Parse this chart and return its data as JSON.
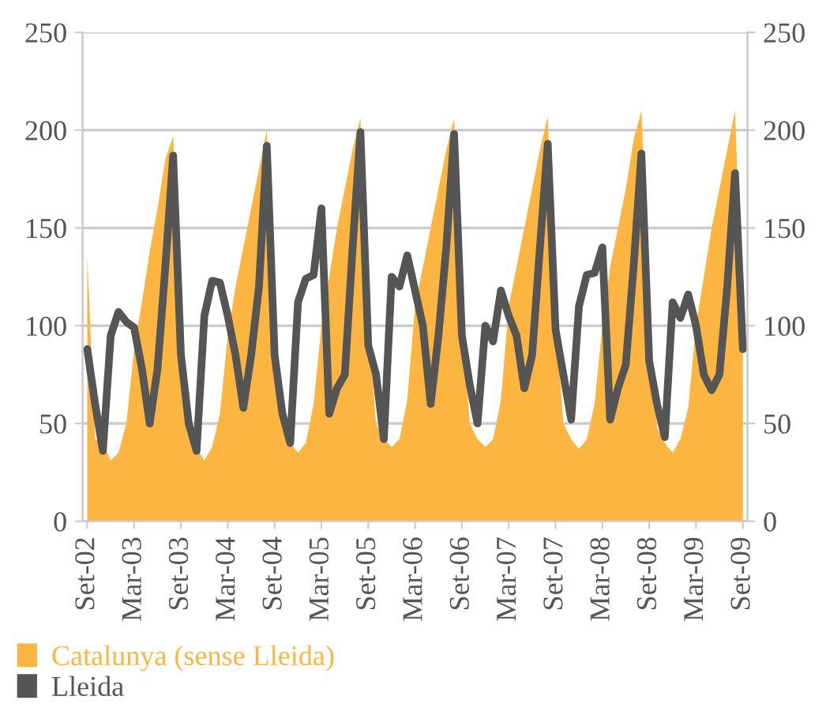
{
  "chart_data": {
    "type": "area",
    "categories": [
      "Set-02",
      null,
      null,
      null,
      null,
      null,
      "Mar-03",
      null,
      null,
      null,
      null,
      null,
      "Set-03",
      null,
      null,
      null,
      null,
      null,
      "Mar-04",
      null,
      null,
      null,
      null,
      null,
      "Set-04",
      null,
      null,
      null,
      null,
      null,
      "Mar-05",
      null,
      null,
      null,
      null,
      null,
      "Set-05",
      null,
      null,
      null,
      null,
      null,
      "Mar-06",
      null,
      null,
      null,
      null,
      null,
      "Set-06",
      null,
      null,
      null,
      null,
      null,
      "Mar-07",
      null,
      null,
      null,
      null,
      null,
      "Set-07",
      null,
      null,
      null,
      null,
      null,
      "Mar-08",
      null,
      null,
      null,
      null,
      null,
      "Set-08",
      null,
      null,
      null,
      null,
      null,
      "Mar-09",
      null,
      null,
      null,
      null,
      null,
      "Set-09"
    ],
    "series": [
      {
        "name": "Catalunya (sense Lleida)",
        "color": "#fbb540",
        "values": [
          136,
          42,
          40,
          31,
          35,
          50,
          88,
          112,
          138,
          160,
          185,
          197,
          100,
          45,
          38,
          31,
          38,
          55,
          95,
          120,
          140,
          160,
          180,
          200,
          105,
          48,
          40,
          35,
          40,
          60,
          100,
          125,
          150,
          170,
          190,
          206,
          105,
          50,
          42,
          38,
          42,
          62,
          110,
          130,
          150,
          170,
          190,
          206,
          105,
          50,
          42,
          38,
          42,
          62,
          110,
          130,
          150,
          170,
          190,
          207,
          105,
          50,
          42,
          37,
          42,
          60,
          100,
          130,
          150,
          170,
          195,
          210,
          105,
          48,
          40,
          35,
          42,
          58,
          100,
          125,
          150,
          170,
          190,
          210,
          100
        ]
      },
      {
        "name": "Lleida",
        "type": "line",
        "color": "#555555",
        "values": [
          88,
          60,
          36,
          95,
          107,
          102,
          99,
          78,
          50,
          78,
          130,
          187,
          85,
          50,
          36,
          105,
          123,
          122,
          105,
          85,
          58,
          85,
          120,
          192,
          85,
          55,
          40,
          112,
          124,
          126,
          160,
          55,
          68,
          75,
          140,
          199,
          90,
          75,
          42,
          125,
          120,
          136,
          118,
          100,
          60,
          95,
          140,
          198,
          95,
          70,
          50,
          100,
          92,
          118,
          105,
          95,
          68,
          85,
          140,
          193,
          98,
          75,
          52,
          110,
          126,
          127,
          140,
          52,
          68,
          80,
          130,
          188,
          82,
          60,
          43,
          112,
          104,
          116,
          100,
          75,
          67,
          75,
          120,
          178,
          88
        ]
      }
    ],
    "ylim": [
      0,
      250
    ],
    "yticks": [
      0,
      50,
      100,
      150,
      200,
      250
    ],
    "y2lim": [
      0,
      250
    ],
    "y2ticks": [
      0,
      50,
      100,
      150,
      200,
      250
    ],
    "grid": "y",
    "legend": "bottom",
    "line_style": "solid",
    "marker": "none"
  }
}
